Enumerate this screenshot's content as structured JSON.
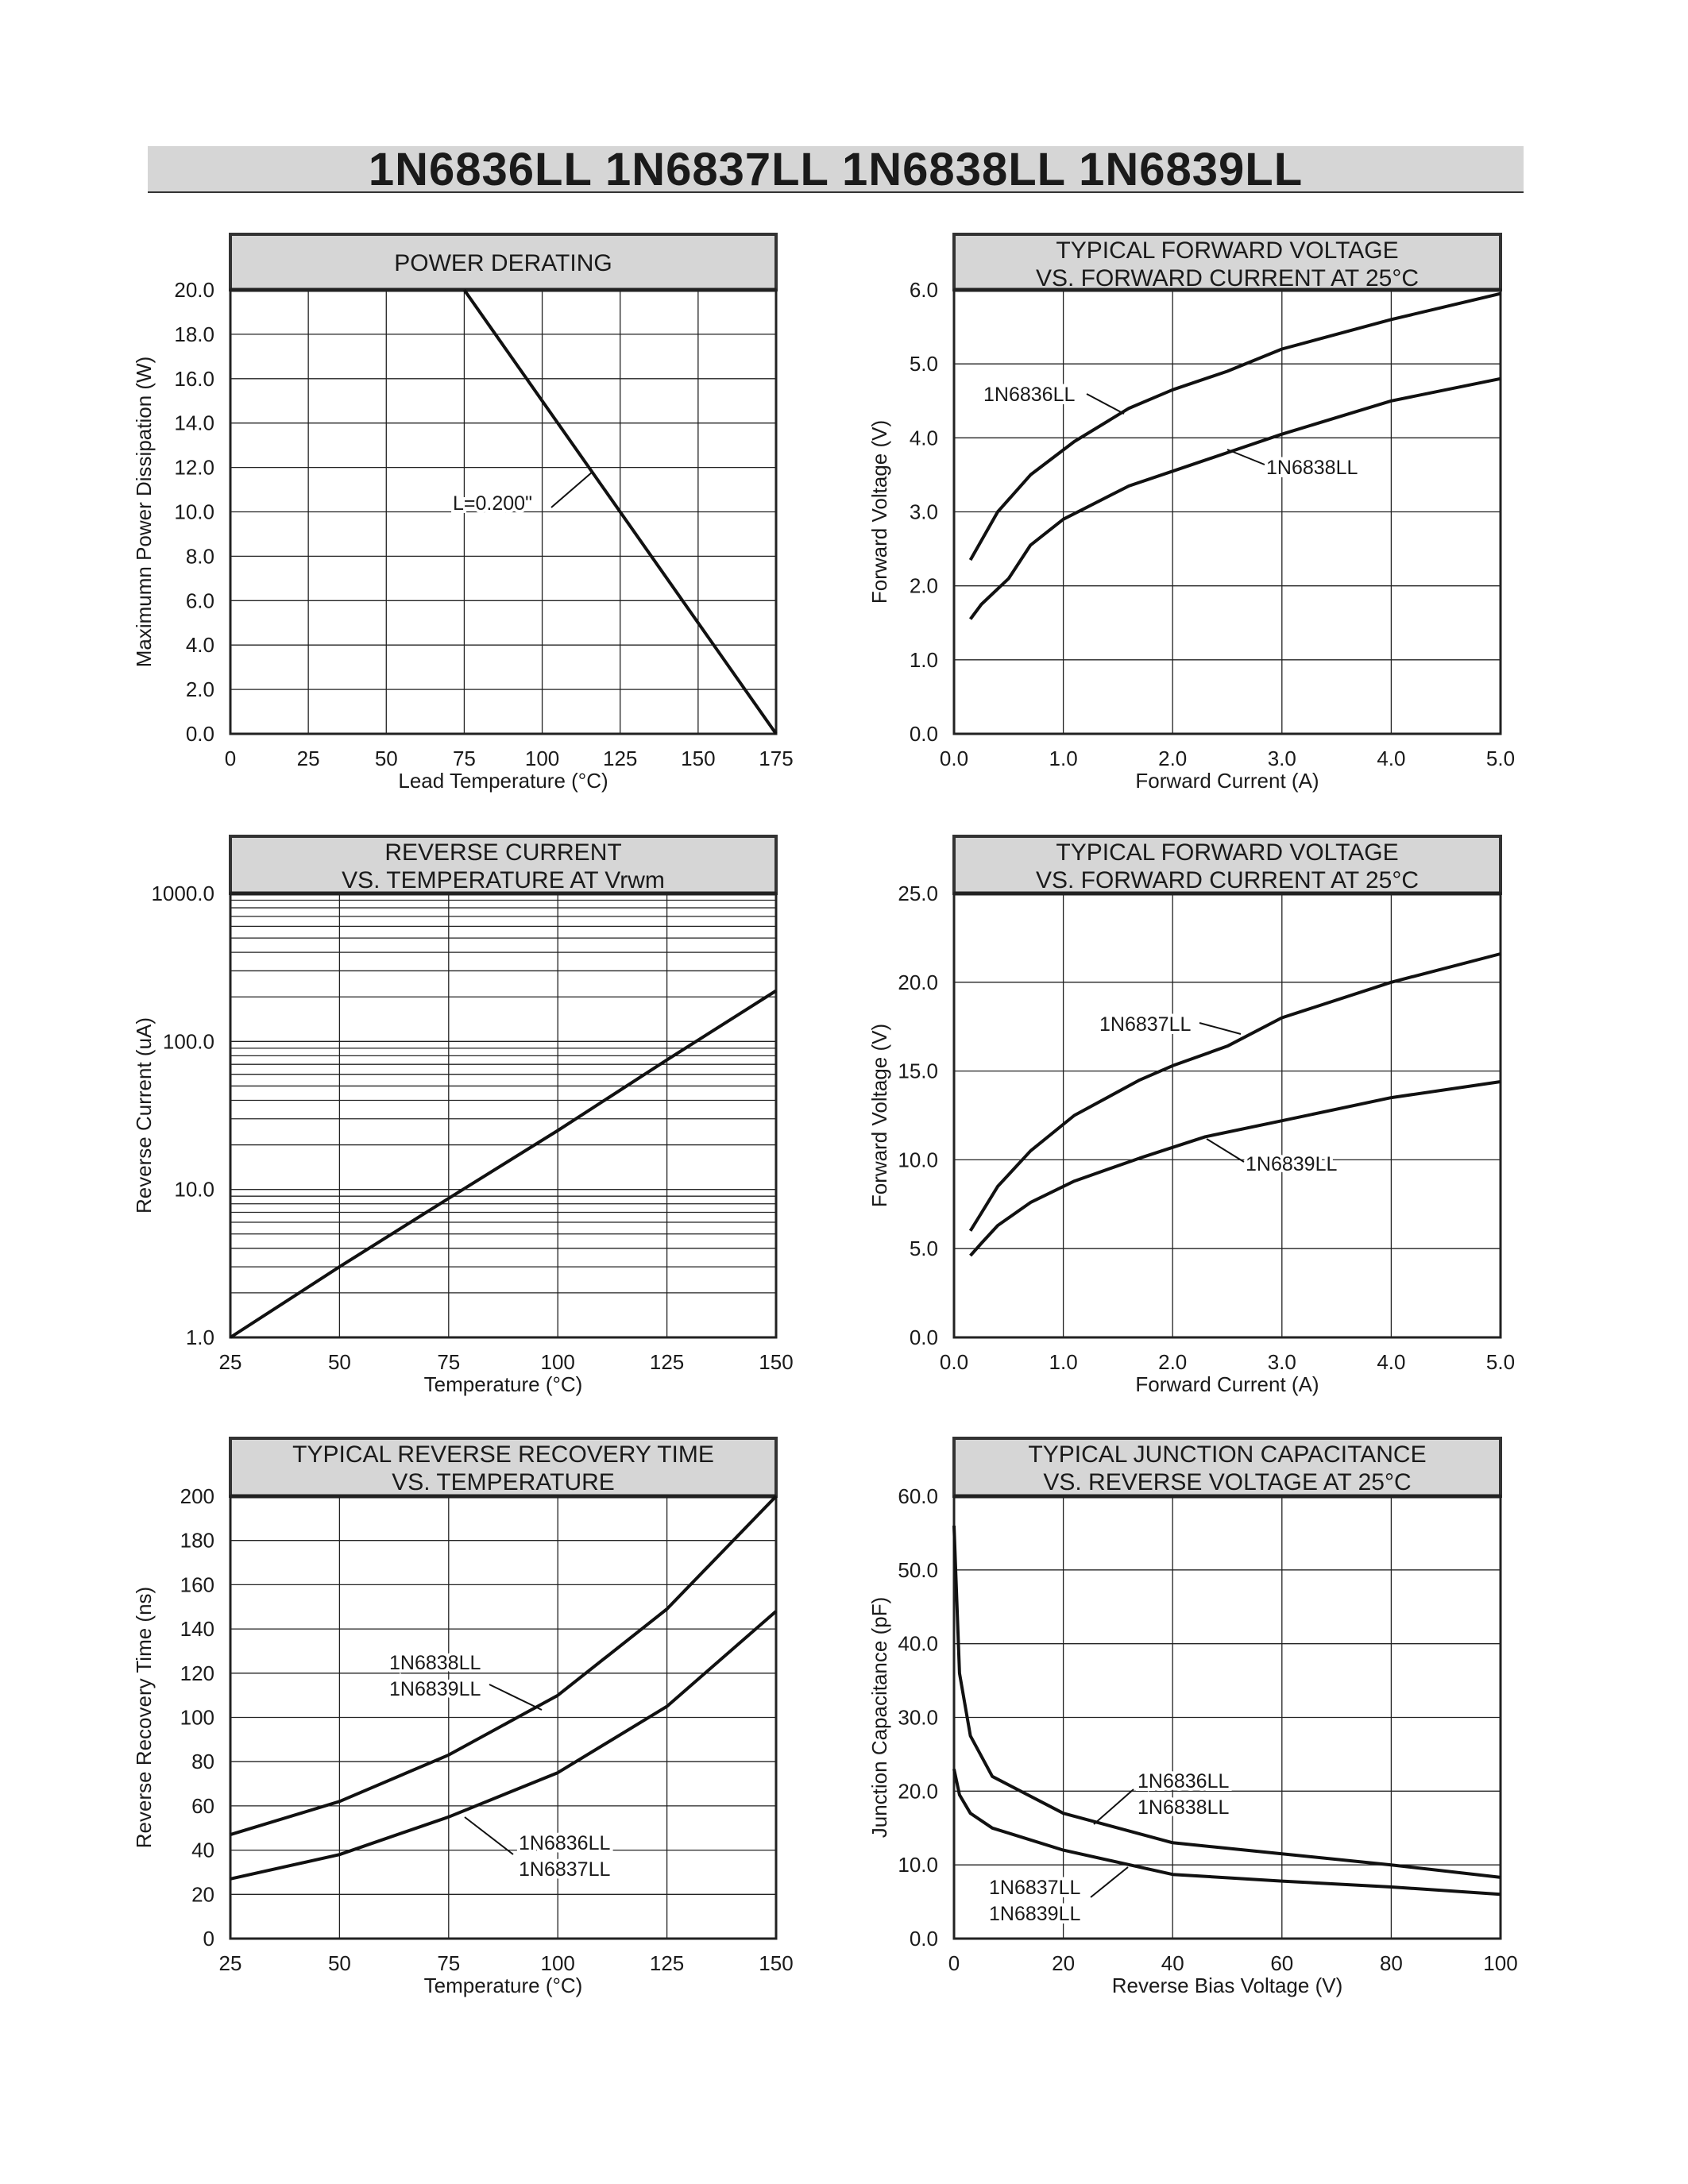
{
  "title": "1N6836LL  1N6837LL  1N6838LL  1N6839LL",
  "chart_data": [
    {
      "type": "line",
      "title": [
        "POWER DERATING"
      ],
      "xlabel": "Lead Temperature (°C)",
      "ylabel": "Maximumn Power Dissipation (W)",
      "xlim": [
        0,
        175
      ],
      "ylim": [
        0,
        20
      ],
      "xticks": [
        "0",
        "25",
        "50",
        "75",
        "100",
        "125",
        "150",
        "175"
      ],
      "yticks": [
        "0.0",
        "2.0",
        "4.0",
        "6.0",
        "8.0",
        "10.0",
        "12.0",
        "14.0",
        "16.0",
        "18.0",
        "20.0"
      ],
      "grid": true,
      "series": [
        {
          "name": "L=0.200\"",
          "x": [
            75,
            175
          ],
          "y": [
            20,
            0
          ]
        }
      ],
      "annotations": [
        "L=0.200\""
      ]
    },
    {
      "type": "line",
      "title": [
        "TYPICAL FORWARD VOLTAGE",
        "VS. FORWARD CURRENT AT 25°C"
      ],
      "xlabel": "Forward Current (A)",
      "ylabel": "Forward Voltage (V)",
      "xlim": [
        0,
        5
      ],
      "ylim": [
        0,
        6
      ],
      "xticks": [
        "0.0",
        "1.0",
        "2.0",
        "3.0",
        "4.0",
        "5.0"
      ],
      "yticks": [
        "0.0",
        "1.0",
        "2.0",
        "3.0",
        "4.0",
        "5.0",
        "6.0"
      ],
      "grid": true,
      "series": [
        {
          "name": "1N6836LL",
          "x": [
            0.15,
            0.4,
            0.7,
            1.1,
            1.6,
            2.0,
            2.5,
            3.0,
            4.0,
            5.0
          ],
          "y": [
            2.35,
            3.0,
            3.5,
            3.95,
            4.4,
            4.65,
            4.9,
            5.2,
            5.6,
            5.95
          ]
        },
        {
          "name": "1N6838LL",
          "x": [
            0.15,
            0.25,
            0.5,
            0.7,
            1.0,
            1.6,
            2.0,
            2.5,
            3.0,
            4.0,
            5.0
          ],
          "y": [
            1.55,
            1.75,
            2.1,
            2.55,
            2.9,
            3.35,
            3.55,
            3.8,
            4.05,
            4.5,
            4.8
          ]
        }
      ],
      "annotations": [
        "1N6836LL",
        "1N6838LL"
      ]
    },
    {
      "type": "line",
      "title": [
        "REVERSE CURRENT",
        "VS. TEMPERATURE AT Vrwm"
      ],
      "xlabel": "Temperature (°C)",
      "ylabel": "Reverse Current (uA)",
      "xlim": [
        25,
        150
      ],
      "ylim": [
        1,
        1000
      ],
      "yscale": "log",
      "xticks": [
        "25",
        "50",
        "75",
        "100",
        "125",
        "150"
      ],
      "yticks": [
        "1.0",
        "10.0",
        "100.0",
        "1000.0"
      ],
      "grid": true,
      "series": [
        {
          "x": [
            25,
            50,
            75,
            100,
            125,
            150
          ],
          "y": [
            1,
            3,
            8.7,
            25,
            75,
            220
          ]
        }
      ],
      "annotations": []
    },
    {
      "type": "line",
      "title": [
        "TYPICAL FORWARD VOLTAGE",
        "VS. FORWARD CURRENT AT 25°C"
      ],
      "xlabel": "Forward Current (A)",
      "ylabel": "Forward Voltage (V)",
      "xlim": [
        0,
        5
      ],
      "ylim": [
        0,
        25
      ],
      "xticks": [
        "0.0",
        "1.0",
        "2.0",
        "3.0",
        "4.0",
        "5.0"
      ],
      "yticks": [
        "0.0",
        "5.0",
        "10.0",
        "15.0",
        "20.0",
        "25.0"
      ],
      "grid": true,
      "series": [
        {
          "name": "1N6837LL",
          "x": [
            0.15,
            0.25,
            0.4,
            0.7,
            1.1,
            1.7,
            2.0,
            2.5,
            3.0,
            4.0,
            5.0
          ],
          "y": [
            6,
            7,
            8.5,
            10.5,
            12.5,
            14.5,
            15.3,
            16.4,
            18,
            20,
            21.6
          ]
        },
        {
          "name": "1N6839LL",
          "x": [
            0.15,
            0.25,
            0.4,
            0.7,
            1.1,
            1.7,
            2.3,
            3.0,
            4.0,
            5.0
          ],
          "y": [
            4.6,
            5.3,
            6.3,
            7.6,
            8.8,
            10.1,
            11.3,
            12.2,
            13.5,
            14.4
          ]
        }
      ],
      "annotations": [
        "1N6837LL",
        "1N6839LL"
      ]
    },
    {
      "type": "line",
      "title": [
        "TYPICAL REVERSE RECOVERY TIME",
        "VS. TEMPERATURE"
      ],
      "xlabel": "Temperature (°C)",
      "ylabel": "Reverse Recovery Time (ns)",
      "xlim": [
        25,
        150
      ],
      "ylim": [
        0,
        200
      ],
      "xticks": [
        "25",
        "50",
        "75",
        "100",
        "125",
        "150"
      ],
      "yticks": [
        "0",
        "20",
        "40",
        "60",
        "80",
        "100",
        "120",
        "140",
        "160",
        "180",
        "200"
      ],
      "grid": true,
      "series": [
        {
          "name": "1N6838LL 1N6839LL",
          "x": [
            25,
            50,
            75,
            100,
            125,
            150
          ],
          "y": [
            47,
            62,
            83,
            110,
            149,
            200
          ]
        },
        {
          "name": "1N6836LL 1N6837LL",
          "x": [
            25,
            50,
            75,
            100,
            125,
            150
          ],
          "y": [
            27,
            38,
            55,
            75,
            105,
            148
          ]
        }
      ],
      "annotations": [
        "1N6838LL",
        "1N6839LL",
        "1N6836LL",
        "1N6837LL"
      ]
    },
    {
      "type": "line",
      "title": [
        "TYPICAL JUNCTION CAPACITANCE",
        "VS. REVERSE VOLTAGE AT 25°C"
      ],
      "xlabel": "Reverse Bias Voltage (V)",
      "ylabel": "Junction Capacitance (pF)",
      "xlim": [
        0,
        100
      ],
      "ylim": [
        0,
        60
      ],
      "xticks": [
        "0",
        "20",
        "40",
        "60",
        "80",
        "100"
      ],
      "yticks": [
        "0.0",
        "10.0",
        "20.0",
        "30.0",
        "40.0",
        "50.0",
        "60.0"
      ],
      "grid": true,
      "series": [
        {
          "name": "1N6836LL 1N6838LL",
          "x": [
            0,
            1,
            3,
            7,
            20,
            40,
            60,
            80,
            100
          ],
          "y": [
            56,
            36,
            27.5,
            22,
            17,
            13,
            11.5,
            10,
            8.3
          ]
        },
        {
          "name": "1N6837LL 1N6839LL",
          "x": [
            0,
            1,
            3,
            7,
            20,
            40,
            60,
            80,
            100
          ],
          "y": [
            23,
            19.5,
            17,
            15,
            12,
            8.7,
            7.8,
            7,
            6
          ]
        }
      ],
      "annotations": [
        "1N6836LL",
        "1N6838LL",
        "1N6837LL",
        "1N6839LL"
      ]
    }
  ]
}
